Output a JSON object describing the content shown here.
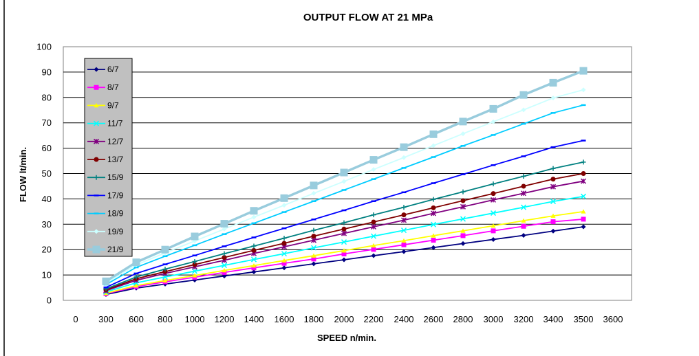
{
  "chart_data": {
    "type": "line",
    "title": "OUTPUT FLOW AT 21 MPa",
    "xlabel": "SPEED n/min.",
    "ylabel": "FLOW  lt/min.",
    "ylim": [
      0,
      100
    ],
    "y_ticks": [
      "0",
      "10",
      "20",
      "30",
      "40",
      "50",
      "60",
      "70",
      "80",
      "90",
      "100"
    ],
    "x_ticks": [
      "0",
      "300",
      "600",
      "800",
      "1000",
      "1200",
      "1400",
      "1600",
      "1800",
      "2000",
      "2200",
      "2400",
      "2600",
      "2800",
      "3000",
      "3200",
      "3400",
      "3500",
      "3600"
    ],
    "categories": [
      "300",
      "600",
      "800",
      "1000",
      "1200",
      "1400",
      "1600",
      "1800",
      "2000",
      "2200",
      "2400",
      "2600",
      "2800",
      "3000",
      "3200",
      "3400",
      "3500"
    ],
    "grid": true,
    "legend_position": "top-left",
    "series": [
      {
        "name": "6/7",
        "color": "#000080",
        "marker": "diamond",
        "values": [
          2.3,
          4.8,
          6.4,
          8,
          9.6,
          11.2,
          12.8,
          14.4,
          16,
          17.6,
          19.2,
          20.8,
          22.4,
          24,
          25.6,
          27.3,
          29
        ]
      },
      {
        "name": "8/7",
        "color": "#ff00ff",
        "marker": "square",
        "values": [
          2.6,
          5.4,
          7.3,
          9.1,
          11,
          12.8,
          14.6,
          16.3,
          18.3,
          20.1,
          21.9,
          23.7,
          25.5,
          27.4,
          29.2,
          31,
          32
        ]
      },
      {
        "name": "9/7",
        "color": "#ffff00",
        "marker": "triangle",
        "values": [
          2.8,
          5.8,
          7.8,
          9.8,
          11.8,
          13.7,
          15.7,
          17.6,
          19.6,
          21.6,
          23.5,
          25.5,
          27.4,
          29.4,
          31.4,
          33.3,
          35
        ]
      },
      {
        "name": "11/7",
        "color": "#00ffff",
        "marker": "x",
        "values": [
          3.3,
          6.9,
          9.2,
          11.5,
          13.8,
          16.1,
          18.4,
          20.7,
          23,
          25.3,
          27.6,
          29.9,
          32.1,
          34.4,
          36.7,
          39,
          41
        ]
      },
      {
        "name": "12/7",
        "color": "#800080",
        "marker": "star",
        "values": [
          3.8,
          7.9,
          10.6,
          13.2,
          15.8,
          18.5,
          21.1,
          23.7,
          26.4,
          29,
          31.6,
          34.3,
          36.9,
          39.6,
          42.2,
          44.8,
          47
        ]
      },
      {
        "name": "13/7",
        "color": "#800000",
        "marker": "circle",
        "values": [
          4.1,
          8.5,
          11.3,
          14.1,
          16.9,
          19.7,
          22.5,
          25.3,
          28.1,
          30.9,
          33.7,
          36.5,
          39.3,
          42.1,
          45,
          47.8,
          50
        ]
      },
      {
        "name": "15/9",
        "color": "#008080",
        "marker": "plus",
        "values": [
          4.5,
          9.2,
          12.3,
          15.3,
          18.4,
          21.4,
          24.5,
          27.6,
          30.6,
          33.7,
          36.7,
          39.8,
          42.8,
          45.9,
          48.9,
          52,
          54.5
        ]
      },
      {
        "name": "17/9",
        "color": "#0000ff",
        "marker": "dash",
        "values": [
          5.1,
          10.6,
          14.2,
          17.7,
          21.3,
          24.8,
          28.4,
          31.9,
          35.5,
          39.1,
          42.6,
          46.2,
          49.7,
          53.3,
          56.8,
          60.4,
          63
        ]
      },
      {
        "name": "18/9",
        "color": "#00ccff",
        "marker": "dash",
        "values": [
          6.2,
          13,
          17.4,
          21.7,
          26.1,
          30.4,
          34.8,
          39.1,
          43.5,
          47.8,
          52.2,
          56.5,
          60.9,
          65.2,
          69.6,
          73.9,
          77
        ]
      },
      {
        "name": "19/9",
        "color": "#ccffff",
        "marker": "diamond",
        "values": [
          6.8,
          14,
          18.7,
          23.4,
          28.1,
          32.8,
          37.5,
          42.2,
          46.9,
          51.6,
          56.3,
          61,
          65.7,
          70.4,
          75.1,
          79.8,
          83
        ]
      },
      {
        "name": "21/9",
        "color": "#99ccdd",
        "marker": "square",
        "values": [
          7.5,
          15,
          20,
          25.2,
          30.2,
          35.3,
          40.3,
          45.3,
          50.4,
          55.4,
          60.4,
          65.5,
          70.5,
          75.5,
          81,
          85.8,
          90.5
        ]
      }
    ]
  }
}
